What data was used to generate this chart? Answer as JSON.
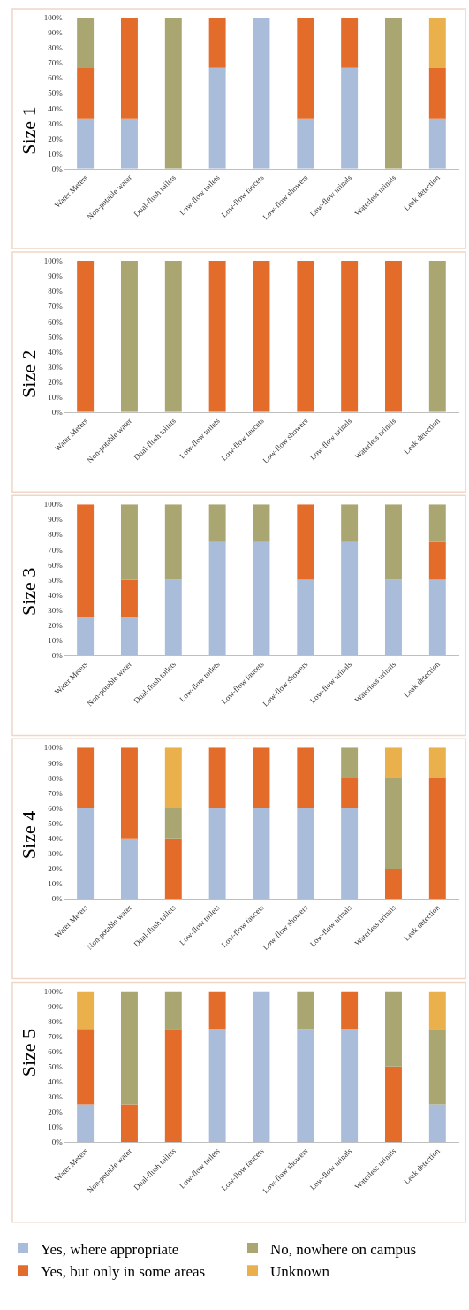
{
  "chart_data": [
    {
      "type": "bar",
      "stacked": true,
      "ylabel": "Size 1",
      "legend": "bottom",
      "categories": [
        "Water Meters",
        "Non-potable water",
        "Dual-flush toilets",
        "Low-flow toilets",
        "Low-flow faucets",
        "Low-flow showers",
        "Low-flow urinals",
        "Waterless urinals",
        "Leak detection"
      ],
      "ylim": [
        0,
        100
      ],
      "yticks": [
        {
          "value": 0,
          "label": "0%"
        },
        {
          "value": 10,
          "label": "10%"
        },
        {
          "value": 20,
          "label": "20%"
        },
        {
          "value": 30,
          "label": "30%"
        },
        {
          "value": 40,
          "label": "40%"
        },
        {
          "value": 50,
          "label": "50%"
        },
        {
          "value": 60,
          "label": "60%"
        },
        {
          "value": 70,
          "label": "70%"
        },
        {
          "value": 80,
          "label": "80%"
        },
        {
          "value": 90,
          "label": "90%"
        },
        {
          "value": 100,
          "label": "100%"
        }
      ],
      "series": [
        {
          "name": "Yes, where appropriate",
          "color": "#a9bcd9",
          "values": [
            33.3,
            33.3,
            0,
            66.7,
            100,
            33.3,
            66.7,
            0,
            33.3
          ]
        },
        {
          "name": "Yes, but only in some areas",
          "color": "#e46c2b",
          "values": [
            33.3,
            66.7,
            0,
            33.3,
            0,
            66.7,
            33.3,
            0,
            33.3
          ]
        },
        {
          "name": "No, nowhere on campus",
          "color": "#a9a672",
          "values": [
            33.3,
            0,
            100,
            0,
            0,
            0,
            0,
            100,
            0
          ]
        },
        {
          "name": "Unknown",
          "color": "#e9b04b",
          "values": [
            0,
            0,
            0,
            0,
            0,
            0,
            0,
            0,
            33.3
          ]
        }
      ]
    },
    {
      "type": "bar",
      "stacked": true,
      "ylabel": "Size 2",
      "categories": [
        "Water Meters",
        "Non-potable water",
        "Dual-flush toilets",
        "Low-flow toilets",
        "Low-flow faucets",
        "Low-flow showers",
        "Low-flow urinals",
        "Waterless urinals",
        "Leak detection"
      ],
      "ylim": [
        0,
        100
      ],
      "yticks": [
        {
          "value": 0,
          "label": "0%"
        },
        {
          "value": 10,
          "label": "10%"
        },
        {
          "value": 20,
          "label": "20%"
        },
        {
          "value": 30,
          "label": "30%"
        },
        {
          "value": 40,
          "label": "40%"
        },
        {
          "value": 50,
          "label": "50%"
        },
        {
          "value": 60,
          "label": "60%"
        },
        {
          "value": 70,
          "label": "70%"
        },
        {
          "value": 80,
          "label": "80%"
        },
        {
          "value": 90,
          "label": "90%"
        },
        {
          "value": 100,
          "label": "100%"
        }
      ],
      "series": [
        {
          "color": "#a9bcd9",
          "values": [
            0,
            0,
            0,
            0,
            0,
            0,
            0,
            0,
            0
          ]
        },
        {
          "color": "#e46c2b",
          "values": [
            100,
            0,
            0,
            100,
            100,
            100,
            100,
            100,
            0
          ]
        },
        {
          "color": "#a9a672",
          "values": [
            0,
            100,
            100,
            0,
            0,
            0,
            0,
            0,
            100
          ]
        },
        {
          "color": "#e9b04b",
          "values": [
            0,
            0,
            0,
            0,
            0,
            0,
            0,
            0,
            0
          ]
        }
      ]
    },
    {
      "type": "bar",
      "stacked": true,
      "ylabel": "Size 3",
      "categories": [
        "Water Meters",
        "Non-potable water",
        "Dual-flush toilets",
        "Low-flow toilets",
        "Low-flow faucets",
        "Low-flow showers",
        "Low-flow urinals",
        "Waterless urinals",
        "Leak detection"
      ],
      "ylim": [
        0,
        100
      ],
      "yticks": [
        {
          "value": 0,
          "label": "0%"
        },
        {
          "value": 10,
          "label": "10%"
        },
        {
          "value": 20,
          "label": "20%"
        },
        {
          "value": 30,
          "label": "30%"
        },
        {
          "value": 40,
          "label": "40%"
        },
        {
          "value": 50,
          "label": "50%"
        },
        {
          "value": 60,
          "label": "60%"
        },
        {
          "value": 70,
          "label": "70%"
        },
        {
          "value": 80,
          "label": "80%"
        },
        {
          "value": 90,
          "label": "90%"
        },
        {
          "value": 100,
          "label": "100%"
        }
      ],
      "series": [
        {
          "color": "#a9bcd9",
          "values": [
            25,
            25,
            50,
            75,
            75,
            50,
            75,
            50,
            50
          ]
        },
        {
          "color": "#e46c2b",
          "values": [
            75,
            25,
            0,
            0,
            0,
            50,
            0,
            0,
            25
          ]
        },
        {
          "color": "#a9a672",
          "values": [
            0,
            50,
            50,
            25,
            25,
            0,
            25,
            50,
            25
          ]
        },
        {
          "color": "#e9b04b",
          "values": [
            0,
            0,
            0,
            0,
            0,
            0,
            0,
            0,
            0
          ]
        }
      ]
    },
    {
      "type": "bar",
      "stacked": true,
      "ylabel": "Size 4",
      "categories": [
        "Water Meters",
        "Non-potable water",
        "Dual-flush toilets",
        "Low-flow toilets",
        "Low-flow faucets",
        "Low-flow showers",
        "Low-flow urinals",
        "Waterless urinals",
        "Leak detection"
      ],
      "ylim": [
        0,
        100
      ],
      "yticks": [
        {
          "value": 0,
          "label": "0%"
        },
        {
          "value": 10,
          "label": "10%"
        },
        {
          "value": 20,
          "label": "20%"
        },
        {
          "value": 30,
          "label": "30%"
        },
        {
          "value": 40,
          "label": "40%"
        },
        {
          "value": 50,
          "label": "50%"
        },
        {
          "value": 60,
          "label": "60%"
        },
        {
          "value": 70,
          "label": "70%"
        },
        {
          "value": 80,
          "label": "80%"
        },
        {
          "value": 90,
          "label": "90%"
        },
        {
          "value": 100,
          "label": "100%"
        }
      ],
      "series": [
        {
          "color": "#a9bcd9",
          "values": [
            60,
            40,
            0,
            60,
            60,
            60,
            60,
            0,
            0
          ]
        },
        {
          "color": "#e46c2b",
          "values": [
            40,
            60,
            40,
            40,
            40,
            40,
            20,
            20,
            80
          ]
        },
        {
          "color": "#a9a672",
          "values": [
            0,
            0,
            20,
            0,
            0,
            0,
            20,
            60,
            0
          ]
        },
        {
          "color": "#e9b04b",
          "values": [
            0,
            0,
            40,
            0,
            0,
            0,
            0,
            20,
            20
          ]
        }
      ]
    },
    {
      "type": "bar",
      "stacked": true,
      "ylabel": "Size 5",
      "categories": [
        "Water Meters",
        "Non-potable water",
        "Dual-flush toilets",
        "Low-flow toilets",
        "Low-flow faucets",
        "Low-flow showers",
        "Low-flow urinals",
        "Waterless urinals",
        "Leak detection"
      ],
      "ylim": [
        0,
        100
      ],
      "yticks": [
        {
          "value": 0,
          "label": "0%"
        },
        {
          "value": 10,
          "label": "10%"
        },
        {
          "value": 20,
          "label": "20%"
        },
        {
          "value": 30,
          "label": "30%"
        },
        {
          "value": 40,
          "label": "40%"
        },
        {
          "value": 50,
          "label": "50%"
        },
        {
          "value": 60,
          "label": "60%"
        },
        {
          "value": 70,
          "label": "70%"
        },
        {
          "value": 80,
          "label": "80%"
        },
        {
          "value": 90,
          "label": "90%"
        },
        {
          "value": 100,
          "label": "100%"
        }
      ],
      "series": [
        {
          "color": "#a9bcd9",
          "values": [
            25,
            0,
            0,
            75,
            100,
            75,
            75,
            0,
            25
          ]
        },
        {
          "color": "#e46c2b",
          "values": [
            50,
            25,
            75,
            25,
            0,
            0,
            25,
            50,
            0
          ]
        },
        {
          "color": "#a9a672",
          "values": [
            0,
            75,
            25,
            0,
            0,
            25,
            0,
            50,
            50
          ]
        },
        {
          "color": "#e9b04b",
          "values": [
            25,
            0,
            0,
            0,
            0,
            0,
            0,
            0,
            25
          ]
        }
      ]
    }
  ]
}
